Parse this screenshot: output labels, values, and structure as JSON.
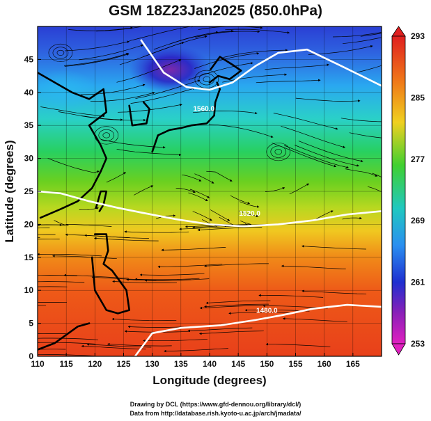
{
  "title": "GSM 18Z23Jan2025 (850.0hPa)",
  "xlabel": "Longitude (degrees)",
  "ylabel": "Latitude  (degrees)",
  "credits": [
    "Drawing by DCL (https://www.gfd-dennou.org/library/dcl/)",
    "Data from http://database.rish.kyoto-u.ac.jp/arch/jmadata/"
  ],
  "chart_data": {
    "type": "heatmap",
    "description_field": "temperature (K) shading with geopotential height contours and wind streamlines",
    "xlim": [
      110,
      170
    ],
    "ylim": [
      0,
      50
    ],
    "x_ticks": [
      110,
      115,
      120,
      125,
      130,
      135,
      140,
      145,
      150,
      155,
      160,
      165
    ],
    "y_ticks": [
      0,
      5,
      10,
      15,
      20,
      25,
      30,
      35,
      40,
      45
    ],
    "grid": true,
    "colorbar": {
      "min": 253,
      "max": 293,
      "labels": [
        293,
        285,
        277,
        269,
        261,
        253
      ],
      "placement": "right"
    },
    "contours": [
      {
        "label": "1560.0",
        "points": [
          [
            128,
            48
          ],
          [
            132,
            43
          ],
          [
            136,
            40.8
          ],
          [
            140,
            40.4
          ],
          [
            144,
            41.5
          ],
          [
            148,
            44
          ],
          [
            152,
            46
          ],
          [
            157,
            46.5
          ],
          [
            163,
            44
          ],
          [
            170,
            41
          ]
        ]
      },
      {
        "label": "1520.0",
        "points": [
          [
            110,
            25
          ],
          [
            114,
            24.7
          ],
          [
            119,
            23.5
          ],
          [
            124,
            22.5
          ],
          [
            128,
            21.8
          ],
          [
            134,
            20.8
          ],
          [
            140,
            20
          ],
          [
            146,
            19.7
          ],
          [
            152,
            20
          ],
          [
            158,
            20.6
          ],
          [
            164,
            21.5
          ],
          [
            170,
            22
          ]
        ]
      },
      {
        "label": "1480.0",
        "points": [
          [
            127,
            0
          ],
          [
            130,
            3.5
          ],
          [
            135,
            4.3
          ],
          [
            142,
            4.7
          ],
          [
            148,
            5.5
          ],
          [
            153,
            6.3
          ],
          [
            158,
            7.2
          ],
          [
            164,
            7.8
          ],
          [
            170,
            7.5
          ]
        ]
      }
    ],
    "contour_label_positions": [
      [
        139,
        37.2
      ],
      [
        147,
        21.3
      ],
      [
        150,
        6.6
      ]
    ],
    "colors": {
      "cold": "#1a10b8",
      "cool": "#2aa8f0",
      "mid": "#22d04a",
      "warm": "#f0a020",
      "hot": "#e83a1a"
    }
  }
}
